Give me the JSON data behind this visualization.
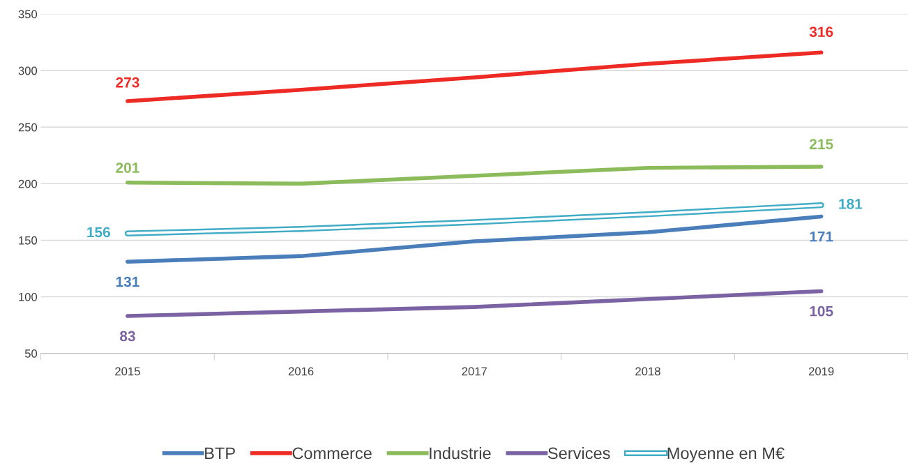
{
  "chart_data": {
    "type": "line",
    "categories": [
      "2015",
      "2016",
      "2017",
      "2018",
      "2019"
    ],
    "series": [
      {
        "name": "BTP",
        "color": "#4a7ebb",
        "values": [
          131,
          136,
          149,
          157,
          171
        ],
        "value_labels": [
          "131",
          null,
          null,
          null,
          "171"
        ]
      },
      {
        "name": "Commerce",
        "color": "#ee2a24",
        "values": [
          273,
          283,
          294,
          306,
          316
        ],
        "value_labels": [
          "273",
          null,
          null,
          null,
          "316"
        ]
      },
      {
        "name": "Industrie",
        "color": "#8bbb5b",
        "values": [
          201,
          200,
          207,
          214,
          215
        ],
        "value_labels": [
          "201",
          null,
          null,
          null,
          "215"
        ]
      },
      {
        "name": "Services",
        "color": "#7b62a3",
        "values": [
          83,
          87,
          91,
          98,
          105
        ],
        "value_labels": [
          "83",
          null,
          null,
          null,
          "105"
        ]
      },
      {
        "name": "Moyenne en M€",
        "color": "#41acc6",
        "values": [
          156,
          160,
          166,
          173,
          181
        ],
        "value_labels": [
          "156",
          null,
          null,
          null,
          "181"
        ]
      }
    ],
    "ylim": [
      50,
      350
    ],
    "yticks": [
      50,
      100,
      150,
      200,
      250,
      300,
      350
    ],
    "grid": "y",
    "legend": "bottom",
    "marker": "none"
  }
}
